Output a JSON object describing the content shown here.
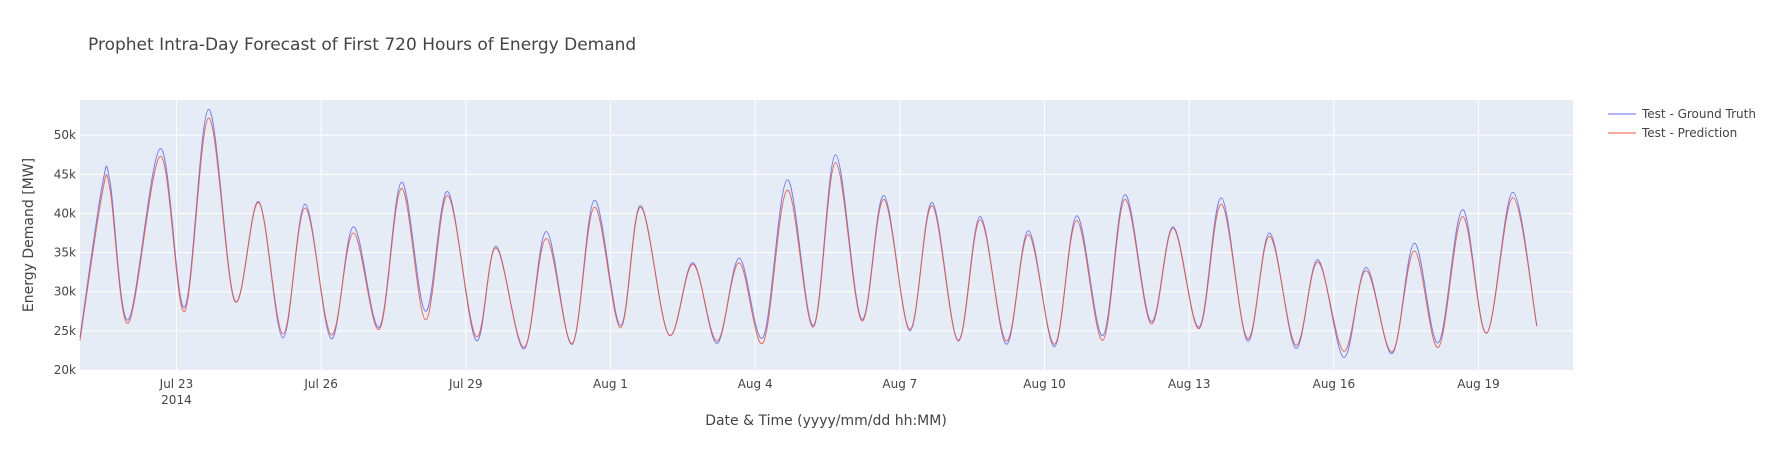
{
  "chart_data": {
    "type": "line",
    "title": "Prophet Intra-Day Forecast of First 720 Hours of Energy Demand",
    "xlabel": "Date & Time (yyyy/mm/dd hh:MM)",
    "ylabel": "Energy Demand [MW]",
    "x_range": [
      "2014-07-21 00:00",
      "2014-08-20 23:00"
    ],
    "ylim": [
      20000,
      54500
    ],
    "x_ticks": [
      {
        "date": "2014-07-23",
        "label": "Jul 23",
        "sublabel": "2014"
      },
      {
        "date": "2014-07-26",
        "label": "Jul 26"
      },
      {
        "date": "2014-07-29",
        "label": "Jul 29"
      },
      {
        "date": "2014-08-01",
        "label": "Aug 1"
      },
      {
        "date": "2014-08-04",
        "label": "Aug 4"
      },
      {
        "date": "2014-08-07",
        "label": "Aug 7"
      },
      {
        "date": "2014-08-10",
        "label": "Aug 10"
      },
      {
        "date": "2014-08-13",
        "label": "Aug 13"
      },
      {
        "date": "2014-08-16",
        "label": "Aug 16"
      },
      {
        "date": "2014-08-19",
        "label": "Aug 19"
      }
    ],
    "y_ticks": [
      {
        "value": 20000,
        "label": "20k"
      },
      {
        "value": 25000,
        "label": "25k"
      },
      {
        "value": 30000,
        "label": "30k"
      },
      {
        "value": 35000,
        "label": "35k"
      },
      {
        "value": 40000,
        "label": "40k"
      },
      {
        "value": 45000,
        "label": "45k"
      },
      {
        "value": 50000,
        "label": "50k"
      }
    ],
    "grid": true,
    "legend_position": "top-right",
    "series": [
      {
        "name": "Test - Ground Truth",
        "color": "#636efa",
        "points": [
          [
            "2014-07-21 00:00",
            24200
          ],
          [
            "2014-07-21 11:00",
            43500
          ],
          [
            "2014-07-21 15:00",
            44000
          ],
          [
            "2014-07-22 00:00",
            26400
          ],
          [
            "2014-07-22 16:00",
            48300
          ],
          [
            "2014-07-23 04:00",
            28000
          ],
          [
            "2014-07-23 16:00",
            53300
          ],
          [
            "2014-07-24 05:00",
            28900
          ],
          [
            "2014-07-24 17:00",
            41500
          ],
          [
            "2014-07-25 05:00",
            24100
          ],
          [
            "2014-07-25 16:00",
            41200
          ],
          [
            "2014-07-26 05:00",
            24000
          ],
          [
            "2014-07-26 16:00",
            38300
          ],
          [
            "2014-07-27 05:00",
            25500
          ],
          [
            "2014-07-27 16:00",
            44000
          ],
          [
            "2014-07-28 04:00",
            27500
          ],
          [
            "2014-07-28 15:00",
            42800
          ],
          [
            "2014-07-29 05:00",
            23800
          ],
          [
            "2014-07-29 15:00",
            35800
          ],
          [
            "2014-07-30 05:00",
            22700
          ],
          [
            "2014-07-30 16:00",
            37700
          ],
          [
            "2014-07-31 05:00",
            23300
          ],
          [
            "2014-07-31 16:00",
            41700
          ],
          [
            "2014-08-01 05:00",
            25700
          ],
          [
            "2014-08-01 15:00",
            41000
          ],
          [
            "2014-08-02 05:00",
            24500
          ],
          [
            "2014-08-02 17:00",
            33700
          ],
          [
            "2014-08-03 05:00",
            23400
          ],
          [
            "2014-08-03 16:00",
            34300
          ],
          [
            "2014-08-04 04:00",
            24200
          ],
          [
            "2014-08-04 16:00",
            44300
          ],
          [
            "2014-08-05 05:00",
            25700
          ],
          [
            "2014-08-05 16:00",
            47500
          ],
          [
            "2014-08-06 05:00",
            26500
          ],
          [
            "2014-08-06 16:00",
            42300
          ],
          [
            "2014-08-07 05:00",
            25000
          ],
          [
            "2014-08-07 16:00",
            41400
          ],
          [
            "2014-08-08 05:00",
            23800
          ],
          [
            "2014-08-08 16:00",
            39600
          ],
          [
            "2014-08-09 05:00",
            23300
          ],
          [
            "2014-08-09 16:00",
            37800
          ],
          [
            "2014-08-10 05:00",
            23000
          ],
          [
            "2014-08-10 16:00",
            39700
          ],
          [
            "2014-08-11 05:00",
            24400
          ],
          [
            "2014-08-11 16:00",
            42400
          ],
          [
            "2014-08-12 05:00",
            26200
          ],
          [
            "2014-08-12 16:00",
            38300
          ],
          [
            "2014-08-13 05:00",
            25500
          ],
          [
            "2014-08-13 16:00",
            42000
          ],
          [
            "2014-08-14 05:00",
            23700
          ],
          [
            "2014-08-14 16:00",
            37500
          ],
          [
            "2014-08-15 05:00",
            22800
          ],
          [
            "2014-08-15 16:00",
            34100
          ],
          [
            "2014-08-16 05:00",
            21600
          ],
          [
            "2014-08-16 16:00",
            33100
          ],
          [
            "2014-08-17 05:00",
            22100
          ],
          [
            "2014-08-17 16:00",
            36200
          ],
          [
            "2014-08-18 04:00",
            23500
          ],
          [
            "2014-08-18 16:00",
            40500
          ],
          [
            "2014-08-19 04:00",
            24700
          ],
          [
            "2014-08-19 17:00",
            42700
          ],
          [
            "2014-08-20 05:00",
            25600
          ]
        ]
      },
      {
        "name": "Test - Prediction",
        "color": "#ef553b",
        "points": [
          [
            "2014-07-21 00:00",
            23800
          ],
          [
            "2014-07-21 11:00",
            42500
          ],
          [
            "2014-07-21 15:00",
            43000
          ],
          [
            "2014-07-22 00:00",
            26000
          ],
          [
            "2014-07-22 16:00",
            47300
          ],
          [
            "2014-07-23 04:00",
            27500
          ],
          [
            "2014-07-23 16:00",
            52200
          ],
          [
            "2014-07-24 05:00",
            28800
          ],
          [
            "2014-07-24 17:00",
            41400
          ],
          [
            "2014-07-25 05:00",
            24600
          ],
          [
            "2014-07-25 16:00",
            40700
          ],
          [
            "2014-07-26 05:00",
            24500
          ],
          [
            "2014-07-26 16:00",
            37500
          ],
          [
            "2014-07-27 05:00",
            25200
          ],
          [
            "2014-07-27 16:00",
            43200
          ],
          [
            "2014-07-28 04:00",
            26400
          ],
          [
            "2014-07-28 15:00",
            42300
          ],
          [
            "2014-07-29 05:00",
            24300
          ],
          [
            "2014-07-29 15:00",
            35600
          ],
          [
            "2014-07-30 05:00",
            22900
          ],
          [
            "2014-07-30 16:00",
            36800
          ],
          [
            "2014-07-31 05:00",
            23400
          ],
          [
            "2014-07-31 16:00",
            40800
          ],
          [
            "2014-08-01 05:00",
            25400
          ],
          [
            "2014-08-01 15:00",
            40800
          ],
          [
            "2014-08-02 05:00",
            24500
          ],
          [
            "2014-08-02 17:00",
            33500
          ],
          [
            "2014-08-03 05:00",
            23700
          ],
          [
            "2014-08-03 16:00",
            33700
          ],
          [
            "2014-08-04 04:00",
            23500
          ],
          [
            "2014-08-04 16:00",
            43000
          ],
          [
            "2014-08-05 05:00",
            25500
          ],
          [
            "2014-08-05 16:00",
            46500
          ],
          [
            "2014-08-06 05:00",
            26300
          ],
          [
            "2014-08-06 16:00",
            41800
          ],
          [
            "2014-08-07 05:00",
            25200
          ],
          [
            "2014-08-07 16:00",
            41000
          ],
          [
            "2014-08-08 05:00",
            23700
          ],
          [
            "2014-08-08 16:00",
            39200
          ],
          [
            "2014-08-09 05:00",
            23700
          ],
          [
            "2014-08-09 16:00",
            37300
          ],
          [
            "2014-08-10 05:00",
            23300
          ],
          [
            "2014-08-10 16:00",
            39100
          ],
          [
            "2014-08-11 05:00",
            23800
          ],
          [
            "2014-08-11 16:00",
            41800
          ],
          [
            "2014-08-12 05:00",
            25900
          ],
          [
            "2014-08-12 16:00",
            38100
          ],
          [
            "2014-08-13 05:00",
            25300
          ],
          [
            "2014-08-13 16:00",
            41200
          ],
          [
            "2014-08-14 05:00",
            24000
          ],
          [
            "2014-08-14 16:00",
            37100
          ],
          [
            "2014-08-15 05:00",
            23200
          ],
          [
            "2014-08-15 16:00",
            33800
          ],
          [
            "2014-08-16 05:00",
            22400
          ],
          [
            "2014-08-16 16:00",
            32700
          ],
          [
            "2014-08-17 05:00",
            22300
          ],
          [
            "2014-08-17 16:00",
            35200
          ],
          [
            "2014-08-18 04:00",
            22900
          ],
          [
            "2014-08-18 16:00",
            39600
          ],
          [
            "2014-08-19 04:00",
            24700
          ],
          [
            "2014-08-19 17:00",
            42000
          ],
          [
            "2014-08-20 05:00",
            25700
          ]
        ]
      }
    ]
  }
}
